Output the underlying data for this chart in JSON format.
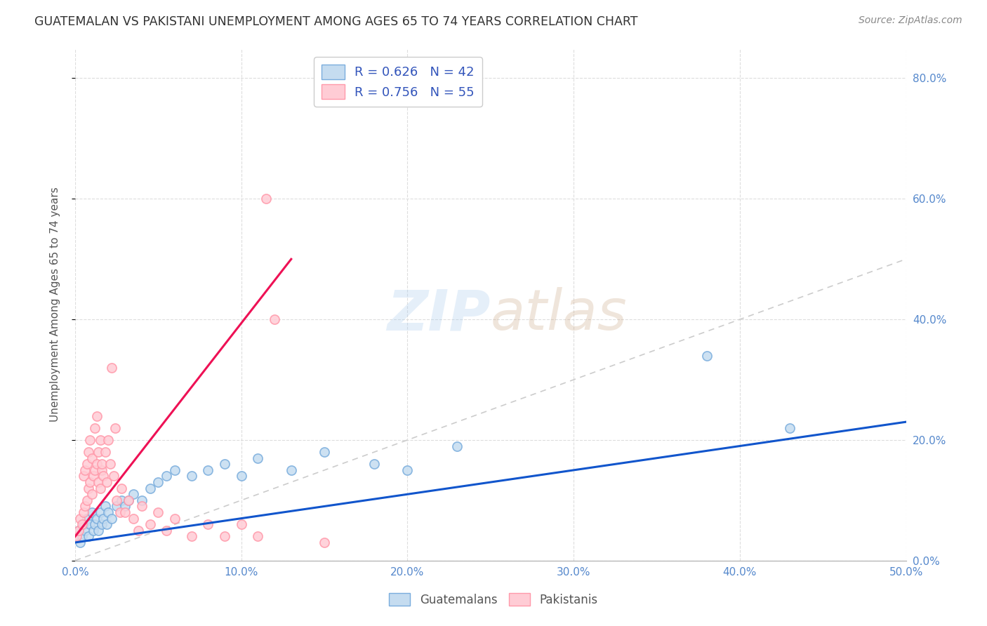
{
  "title": "GUATEMALAN VS PAKISTANI UNEMPLOYMENT AMONG AGES 65 TO 74 YEARS CORRELATION CHART",
  "source": "Source: ZipAtlas.com",
  "ylabel": "Unemployment Among Ages 65 to 74 years",
  "xlim": [
    0.0,
    0.5
  ],
  "ylim": [
    0.0,
    0.85
  ],
  "xtick_vals": [
    0.0,
    0.1,
    0.2,
    0.3,
    0.4,
    0.5
  ],
  "ytick_vals": [
    0.0,
    0.2,
    0.4,
    0.6,
    0.8
  ],
  "legend_blue_label": "R = 0.626   N = 42",
  "legend_pink_label": "R = 0.756   N = 55",
  "blue_scatter_x": [
    0.002,
    0.003,
    0.004,
    0.005,
    0.006,
    0.007,
    0.008,
    0.009,
    0.01,
    0.011,
    0.012,
    0.013,
    0.014,
    0.015,
    0.016,
    0.017,
    0.018,
    0.019,
    0.02,
    0.022,
    0.025,
    0.028,
    0.03,
    0.032,
    0.035,
    0.04,
    0.045,
    0.05,
    0.055,
    0.06,
    0.07,
    0.08,
    0.09,
    0.1,
    0.11,
    0.13,
    0.15,
    0.18,
    0.2,
    0.23,
    0.38,
    0.43
  ],
  "blue_scatter_y": [
    0.05,
    0.03,
    0.04,
    0.06,
    0.05,
    0.07,
    0.04,
    0.06,
    0.08,
    0.05,
    0.06,
    0.07,
    0.05,
    0.08,
    0.06,
    0.07,
    0.09,
    0.06,
    0.08,
    0.07,
    0.09,
    0.1,
    0.09,
    0.1,
    0.11,
    0.1,
    0.12,
    0.13,
    0.14,
    0.15,
    0.14,
    0.15,
    0.16,
    0.14,
    0.17,
    0.15,
    0.18,
    0.16,
    0.15,
    0.19,
    0.34,
    0.22
  ],
  "pink_scatter_x": [
    0.001,
    0.002,
    0.003,
    0.004,
    0.005,
    0.005,
    0.006,
    0.006,
    0.007,
    0.007,
    0.008,
    0.008,
    0.009,
    0.009,
    0.01,
    0.01,
    0.011,
    0.012,
    0.012,
    0.013,
    0.013,
    0.014,
    0.014,
    0.015,
    0.015,
    0.016,
    0.016,
    0.017,
    0.018,
    0.019,
    0.02,
    0.021,
    0.022,
    0.023,
    0.024,
    0.025,
    0.027,
    0.028,
    0.03,
    0.032,
    0.035,
    0.038,
    0.04,
    0.045,
    0.05,
    0.055,
    0.06,
    0.07,
    0.08,
    0.09,
    0.1,
    0.11,
    0.115,
    0.12,
    0.15
  ],
  "pink_scatter_y": [
    0.04,
    0.05,
    0.07,
    0.06,
    0.08,
    0.14,
    0.09,
    0.15,
    0.1,
    0.16,
    0.12,
    0.18,
    0.13,
    0.2,
    0.11,
    0.17,
    0.14,
    0.15,
    0.22,
    0.16,
    0.24,
    0.13,
    0.18,
    0.12,
    0.2,
    0.15,
    0.16,
    0.14,
    0.18,
    0.13,
    0.2,
    0.16,
    0.32,
    0.14,
    0.22,
    0.1,
    0.08,
    0.12,
    0.08,
    0.1,
    0.07,
    0.05,
    0.09,
    0.06,
    0.08,
    0.05,
    0.07,
    0.04,
    0.06,
    0.04,
    0.06,
    0.04,
    0.6,
    0.4,
    0.03
  ],
  "blue_line_x": [
    0.0,
    0.5
  ],
  "blue_line_y": [
    0.03,
    0.23
  ],
  "pink_line_x": [
    0.0,
    0.13
  ],
  "pink_line_y": [
    0.04,
    0.5
  ],
  "diag_line_x": [
    0.0,
    0.5
  ],
  "diag_line_y": [
    0.0,
    0.5
  ],
  "blue_color": "#7AADDD",
  "pink_color": "#FF99AA",
  "blue_fill_color": "#C5DCF0",
  "pink_fill_color": "#FFCCD5",
  "blue_line_color": "#1155CC",
  "pink_line_color": "#EE1155",
  "diag_line_color": "#CCCCCC",
  "watermark_zip_color": "#AACCEE",
  "watermark_atlas_color": "#DDAA88",
  "background_color": "#FFFFFF",
  "grid_color": "#DDDDDD",
  "tick_color": "#5588CC",
  "title_color": "#333333",
  "source_color": "#888888",
  "ylabel_color": "#555555"
}
